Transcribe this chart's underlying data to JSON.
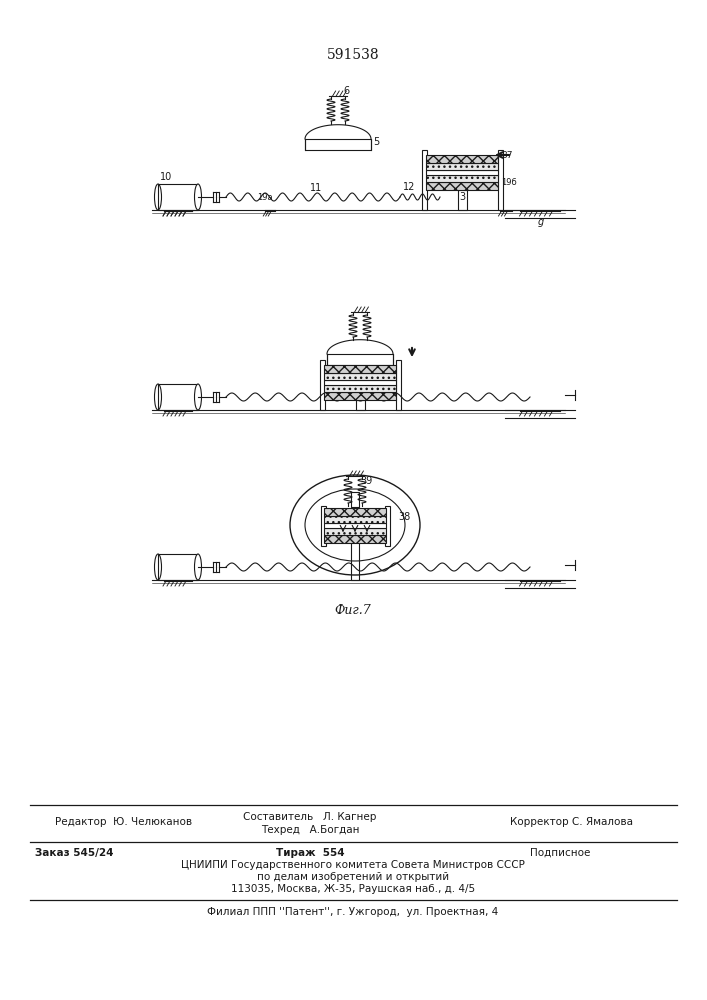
{
  "patent_number": "591538",
  "fig_label": "Фиг.7",
  "line_color": "#1a1a1a",
  "footer": {
    "editor": "Редактор  Ю. Челюканов",
    "composer": "Составитель   Л. Кагнер",
    "techred": "Техред   А.Богдан",
    "corrector": "Корректор С. Ямалова",
    "order": "Заказ 545/24",
    "tiraz": "Тираж  554",
    "podpisnoe": "Подписное",
    "tsniip1": "ЦНИИПИ Государственного комитета Совета Министров СССР",
    "tsniip2": "по делам изобретений и открытий",
    "tsniip3": "113035, Москва, Ж-35, Раушская наб., д. 4/5",
    "filial": "Филиал ППП ''Патент'', г. Ужгород,  ул. Проектная, 4"
  }
}
